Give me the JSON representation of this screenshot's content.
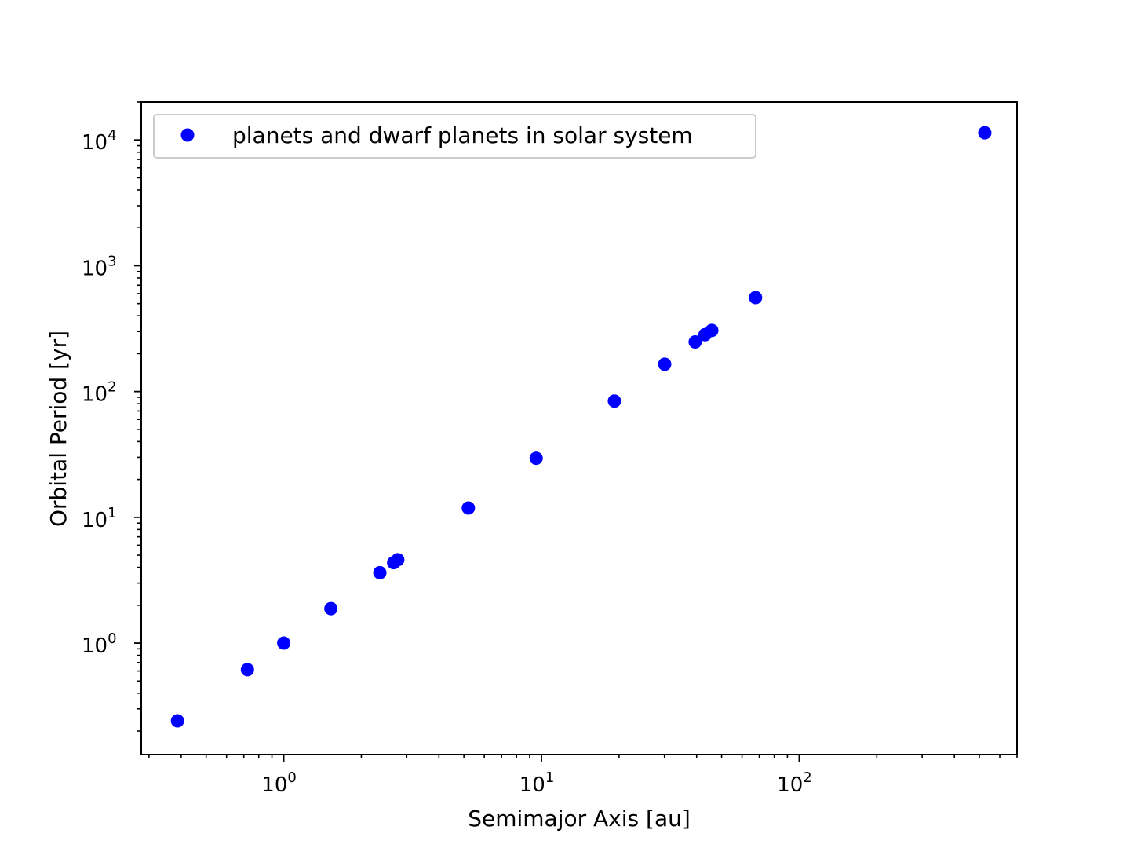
{
  "chart_data": {
    "type": "scatter",
    "title": "",
    "xlabel": "Semimajor Axis [au]",
    "ylabel": "Orbital Period [yr]",
    "xscale": "log",
    "yscale": "log",
    "xlim": [
      0.28,
      700
    ],
    "ylim": [
      0.13,
      20000
    ],
    "grid": false,
    "legend": {
      "position": "top-left"
    },
    "colors": {
      "points": "#0000ff",
      "axes": "#000000",
      "legend_border": "#cccccc"
    },
    "x_ticks": [
      {
        "base": "10",
        "exp": "0",
        "value": 1
      },
      {
        "base": "10",
        "exp": "1",
        "value": 10
      },
      {
        "base": "10",
        "exp": "2",
        "value": 100
      }
    ],
    "y_ticks": [
      {
        "base": "10",
        "exp": "0",
        "value": 1
      },
      {
        "base": "10",
        "exp": "1",
        "value": 10
      },
      {
        "base": "10",
        "exp": "2",
        "value": 100
      },
      {
        "base": "10",
        "exp": "3",
        "value": 1000
      },
      {
        "base": "10",
        "exp": "4",
        "value": 10000
      }
    ],
    "series": [
      {
        "name": "planets and dwarf planets in solar system",
        "marker": "circle",
        "points": [
          {
            "x": 0.387,
            "y": 0.241
          },
          {
            "x": 0.723,
            "y": 0.615
          },
          {
            "x": 1.0,
            "y": 1.0
          },
          {
            "x": 1.524,
            "y": 1.881
          },
          {
            "x": 2.36,
            "y": 3.63
          },
          {
            "x": 2.67,
            "y": 4.36
          },
          {
            "x": 2.77,
            "y": 4.6
          },
          {
            "x": 5.203,
            "y": 11.86
          },
          {
            "x": 9.537,
            "y": 29.46
          },
          {
            "x": 19.19,
            "y": 84.01
          },
          {
            "x": 30.07,
            "y": 164.8
          },
          {
            "x": 39.48,
            "y": 247.9
          },
          {
            "x": 43.1,
            "y": 283.0
          },
          {
            "x": 45.8,
            "y": 306.0
          },
          {
            "x": 67.7,
            "y": 558.0
          },
          {
            "x": 525.0,
            "y": 11400.0
          }
        ]
      }
    ]
  }
}
